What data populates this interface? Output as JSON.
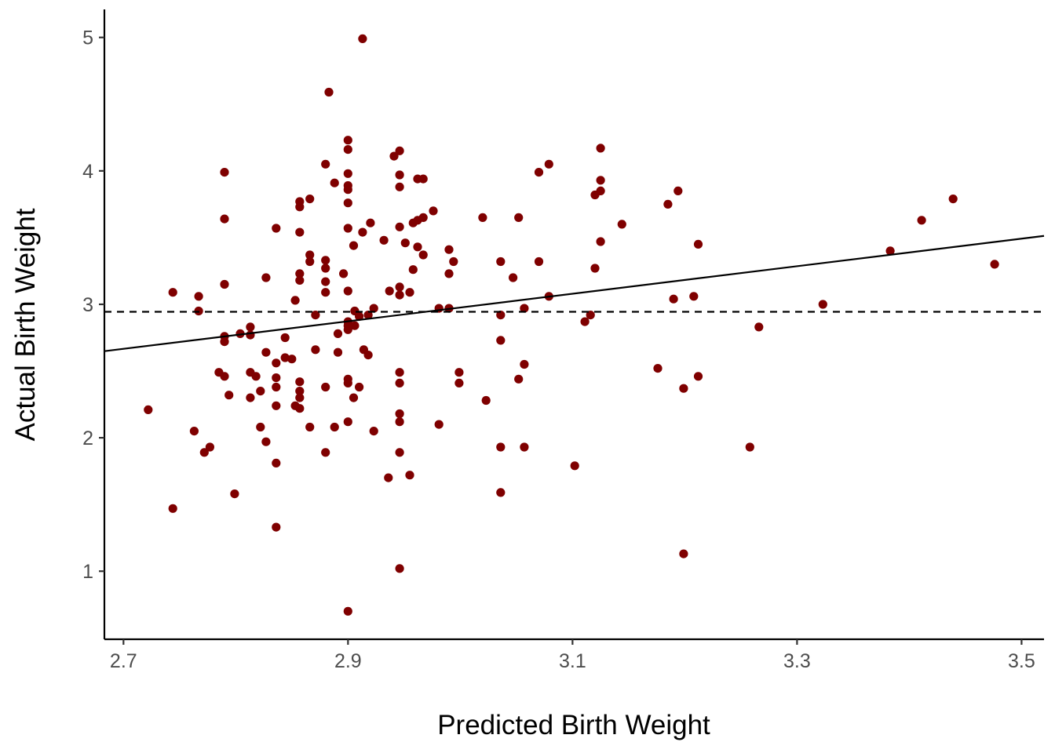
{
  "chart_data": {
    "type": "scatter",
    "title": "",
    "xlabel": "Predicted Birth Weight",
    "ylabel": "Actual Birth Weight",
    "xlim": [
      2.683,
      3.52
    ],
    "ylim": [
      0.49,
      5.21
    ],
    "x_ticks": [
      2.7,
      2.9,
      3.1,
      3.3,
      3.5
    ],
    "y_ticks": [
      1,
      2,
      3,
      4,
      5
    ],
    "x_tick_labels": [
      "2.7",
      "2.9",
      "3.1",
      "3.3",
      "3.5"
    ],
    "y_tick_labels": [
      "1",
      "2",
      "3",
      "4",
      "5"
    ],
    "grid": false,
    "legend": "none",
    "point_color": "#7F0000",
    "line_color": "#000000",
    "reference_line": {
      "style": "dashed",
      "y": 2.944
    },
    "fit_line": {
      "style": "solid",
      "intercept": -0.12,
      "slope": 1.032
    },
    "points": [
      [
        2.913,
        4.99
      ],
      [
        2.883,
        4.59
      ],
      [
        2.9,
        4.23
      ],
      [
        2.9,
        4.16
      ],
      [
        2.946,
        4.15
      ],
      [
        2.941,
        4.11
      ],
      [
        2.88,
        4.05
      ],
      [
        2.9,
        3.98
      ],
      [
        2.946,
        3.97
      ],
      [
        2.962,
        3.94
      ],
      [
        2.967,
        3.94
      ],
      [
        2.888,
        3.91
      ],
      [
        2.9,
        3.89
      ],
      [
        2.946,
        3.88
      ],
      [
        2.9,
        3.86
      ],
      [
        2.79,
        3.99
      ],
      [
        2.79,
        3.64
      ],
      [
        2.836,
        3.57
      ],
      [
        2.857,
        3.77
      ],
      [
        2.857,
        3.73
      ],
      [
        2.866,
        3.79
      ],
      [
        2.9,
        3.76
      ],
      [
        2.857,
        3.54
      ],
      [
        2.866,
        3.37
      ],
      [
        2.866,
        3.32
      ],
      [
        2.88,
        3.33
      ],
      [
        2.88,
        3.27
      ],
      [
        2.857,
        3.23
      ],
      [
        2.857,
        3.18
      ],
      [
        2.88,
        3.17
      ],
      [
        2.88,
        3.09
      ],
      [
        2.827,
        3.2
      ],
      [
        2.79,
        3.15
      ],
      [
        2.9,
        3.57
      ],
      [
        2.913,
        3.54
      ],
      [
        2.92,
        3.61
      ],
      [
        2.932,
        3.48
      ],
      [
        2.905,
        3.44
      ],
      [
        2.946,
        3.58
      ],
      [
        2.951,
        3.46
      ],
      [
        2.958,
        3.61
      ],
      [
        2.962,
        3.63
      ],
      [
        2.967,
        3.65
      ],
      [
        2.976,
        3.7
      ],
      [
        2.962,
        3.43
      ],
      [
        2.967,
        3.37
      ],
      [
        2.958,
        3.26
      ],
      [
        2.99,
        3.41
      ],
      [
        2.994,
        3.32
      ],
      [
        2.99,
        3.23
      ],
      [
        2.896,
        3.23
      ],
      [
        2.9,
        3.1
      ],
      [
        2.937,
        3.1
      ],
      [
        2.946,
        3.13
      ],
      [
        2.946,
        3.07
      ],
      [
        2.955,
        3.09
      ],
      [
        2.744,
        3.09
      ],
      [
        2.767,
        3.06
      ],
      [
        2.767,
        2.95
      ],
      [
        2.853,
        3.03
      ],
      [
        2.871,
        2.92
      ],
      [
        2.906,
        2.95
      ],
      [
        2.91,
        2.91
      ],
      [
        2.918,
        2.92
      ],
      [
        2.923,
        2.97
      ],
      [
        2.981,
        2.97
      ],
      [
        2.99,
        2.97
      ],
      [
        2.9,
        2.87
      ],
      [
        2.9,
        2.84
      ],
      [
        2.9,
        2.81
      ],
      [
        2.906,
        2.84
      ],
      [
        2.891,
        2.78
      ],
      [
        2.813,
        2.83
      ],
      [
        2.813,
        2.77
      ],
      [
        2.804,
        2.78
      ],
      [
        2.79,
        2.76
      ],
      [
        2.79,
        2.72
      ],
      [
        2.844,
        2.75
      ],
      [
        2.871,
        2.66
      ],
      [
        2.891,
        2.64
      ],
      [
        2.914,
        2.66
      ],
      [
        2.918,
        2.62
      ],
      [
        2.827,
        2.64
      ],
      [
        2.844,
        2.6
      ],
      [
        2.85,
        2.59
      ],
      [
        2.836,
        2.56
      ],
      [
        2.785,
        2.49
      ],
      [
        2.79,
        2.46
      ],
      [
        2.813,
        2.49
      ],
      [
        2.818,
        2.46
      ],
      [
        2.836,
        2.45
      ],
      [
        2.836,
        2.38
      ],
      [
        2.857,
        2.42
      ],
      [
        2.857,
        2.35
      ],
      [
        2.857,
        2.3
      ],
      [
        2.88,
        2.38
      ],
      [
        2.9,
        2.44
      ],
      [
        2.9,
        2.41
      ],
      [
        2.91,
        2.38
      ],
      [
        2.905,
        2.3
      ],
      [
        2.946,
        2.49
      ],
      [
        2.946,
        2.41
      ],
      [
        2.794,
        2.32
      ],
      [
        2.813,
        2.3
      ],
      [
        2.822,
        2.35
      ],
      [
        2.836,
        2.24
      ],
      [
        2.853,
        2.24
      ],
      [
        2.857,
        2.22
      ],
      [
        2.946,
        2.18
      ],
      [
        2.946,
        2.12
      ],
      [
        2.9,
        2.12
      ],
      [
        2.923,
        2.05
      ],
      [
        2.888,
        2.08
      ],
      [
        2.866,
        2.08
      ],
      [
        2.822,
        2.08
      ],
      [
        2.827,
        1.97
      ],
      [
        2.763,
        2.05
      ],
      [
        2.777,
        1.93
      ],
      [
        2.772,
        1.89
      ],
      [
        2.88,
        1.89
      ],
      [
        2.946,
        1.89
      ],
      [
        2.836,
        1.81
      ],
      [
        2.936,
        1.7
      ],
      [
        2.955,
        1.72
      ],
      [
        2.799,
        1.58
      ],
      [
        2.744,
        1.47
      ],
      [
        2.836,
        1.33
      ],
      [
        2.722,
        2.21
      ],
      [
        2.946,
        1.02
      ],
      [
        2.9,
        0.7
      ],
      [
        2.981,
        2.1
      ],
      [
        2.999,
        2.49
      ],
      [
        2.999,
        2.41
      ],
      [
        3.023,
        2.28
      ],
      [
        3.02,
        3.65
      ],
      [
        3.036,
        3.32
      ],
      [
        3.036,
        2.92
      ],
      [
        3.036,
        2.73
      ],
      [
        3.036,
        1.93
      ],
      [
        3.036,
        1.59
      ],
      [
        3.047,
        3.2
      ],
      [
        3.052,
        3.65
      ],
      [
        3.057,
        2.97
      ],
      [
        3.052,
        2.44
      ],
      [
        3.057,
        2.55
      ],
      [
        3.057,
        1.93
      ],
      [
        3.07,
        3.32
      ],
      [
        3.07,
        3.99
      ],
      [
        3.079,
        4.05
      ],
      [
        3.079,
        3.06
      ],
      [
        3.102,
        1.79
      ],
      [
        3.111,
        2.87
      ],
      [
        3.116,
        2.92
      ],
      [
        3.12,
        3.27
      ],
      [
        3.12,
        3.82
      ],
      [
        3.125,
        3.85
      ],
      [
        3.125,
        3.93
      ],
      [
        3.125,
        4.17
      ],
      [
        3.125,
        3.47
      ],
      [
        3.144,
        3.6
      ],
      [
        3.176,
        2.52
      ],
      [
        3.185,
        3.75
      ],
      [
        3.19,
        3.04
      ],
      [
        3.194,
        3.85
      ],
      [
        3.199,
        2.37
      ],
      [
        3.199,
        1.13
      ],
      [
        3.208,
        3.06
      ],
      [
        3.212,
        3.45
      ],
      [
        3.212,
        2.46
      ],
      [
        3.258,
        1.93
      ],
      [
        3.266,
        2.83
      ],
      [
        3.323,
        3.0
      ],
      [
        3.383,
        3.4
      ],
      [
        3.411,
        3.63
      ],
      [
        3.439,
        3.79
      ],
      [
        3.476,
        3.3
      ]
    ]
  }
}
